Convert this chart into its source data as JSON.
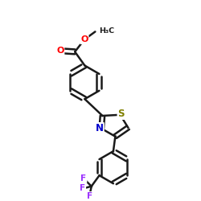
{
  "bg_color": "#ffffff",
  "bond_color": "#1a1a1a",
  "bond_width": 1.8,
  "atom_colors": {
    "O": "#ff0000",
    "N": "#0000cd",
    "S": "#808000",
    "F": "#9b30ff",
    "C": "#1a1a1a"
  },
  "figsize": [
    2.5,
    2.5
  ],
  "dpi": 100
}
